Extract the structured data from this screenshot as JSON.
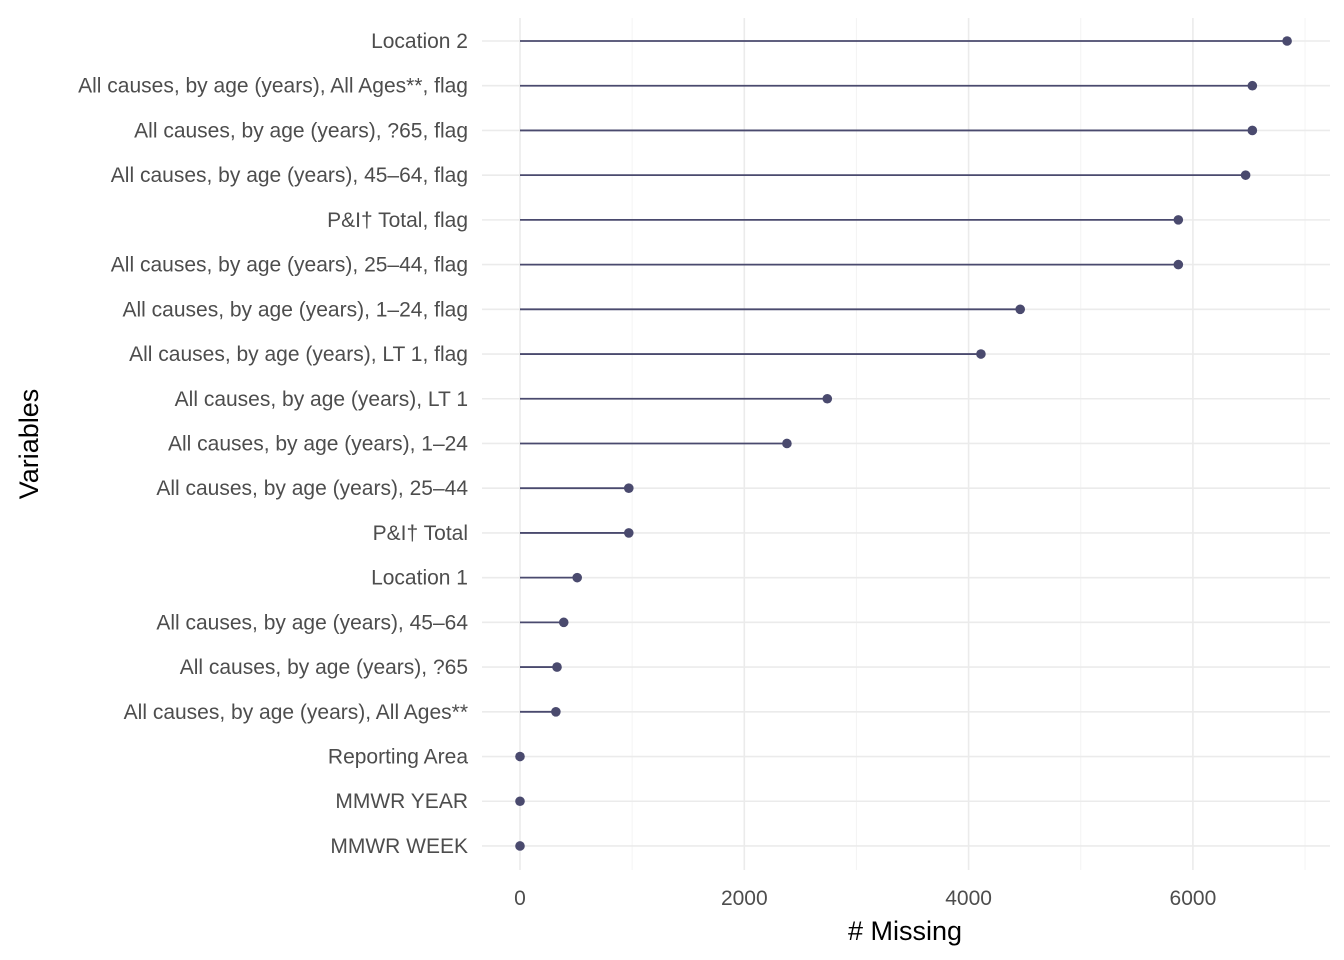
{
  "chart_data": {
    "type": "lollipop",
    "orientation": "horizontal",
    "xlabel": "# Missing",
    "ylabel": "Variables",
    "xlim": [
      0,
      7200
    ],
    "xticks": [
      0,
      2000,
      4000,
      6000
    ],
    "grid": true,
    "legend": "none",
    "color": "#4a4a6e",
    "categories": [
      "Location 2",
      "All causes, by age (years), All Ages**, flag",
      "All causes, by age (years), ?65, flag",
      "All causes, by age (years), 45–64, flag",
      "P&I† Total, flag",
      "All causes, by age (years), 25–44, flag",
      "All causes, by age (years), 1–24, flag",
      "All causes, by age (years), LT 1, flag",
      "All causes, by age (years), LT 1",
      "All causes, by age (years), 1–24",
      "All causes, by age (years), 25–44",
      "P&I† Total",
      "Location 1",
      "All causes, by age (years), 45–64",
      "All causes, by age (years), ?65",
      "All causes, by age (years), All Ages**",
      "Reporting Area",
      "MMWR YEAR",
      "MMWR WEEK"
    ],
    "values": [
      6840,
      6530,
      6530,
      6470,
      5870,
      5870,
      4460,
      4110,
      2740,
      2380,
      970,
      970,
      510,
      390,
      330,
      320,
      0,
      0,
      0
    ]
  }
}
